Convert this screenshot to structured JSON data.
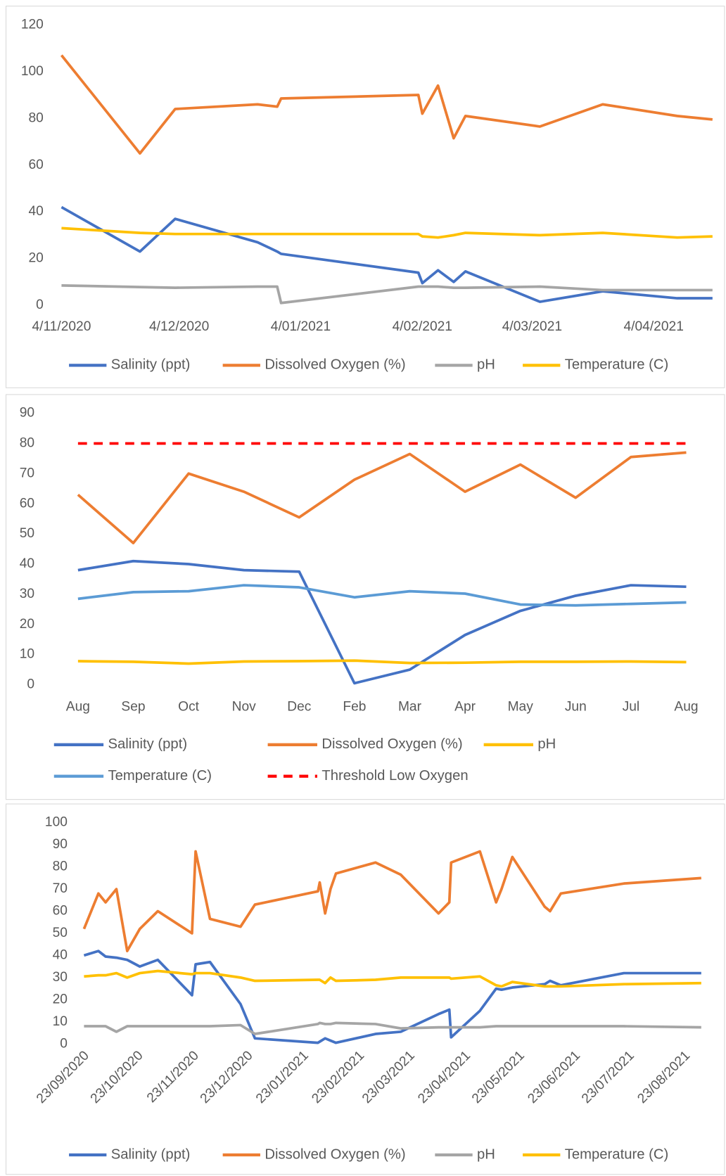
{
  "chart_data": [
    {
      "type": "line",
      "x": [
        "2020-11-04",
        "2020-11-24",
        "2020-12-03",
        "2020-12-24",
        "2020-12-29",
        "2020-12-30",
        "2021-02-03",
        "2021-02-04",
        "2021-02-08",
        "2021-02-12",
        "2021-02-15",
        "2021-03-06",
        "2021-03-22",
        "2021-04-10",
        "2021-04-19"
      ],
      "xlim": [
        "2020-11-04",
        "2021-04-19"
      ],
      "xticks": [
        {
          "value": "2020-11-04",
          "label": "4/11/2020"
        },
        {
          "value": "2020-12-04",
          "label": "4/12/2020"
        },
        {
          "value": "2021-01-04",
          "label": "4/01/2021"
        },
        {
          "value": "2021-02-04",
          "label": "4/02/2021"
        },
        {
          "value": "2021-03-04",
          "label": "4/03/2021"
        },
        {
          "value": "2021-04-04",
          "label": "4/04/2021"
        }
      ],
      "ylim": [
        0,
        120
      ],
      "yticks": [
        0,
        20,
        40,
        60,
        80,
        100,
        120
      ],
      "grid": false,
      "series": [
        {
          "name": "Salinity (ppt)",
          "color": "#4472c4",
          "values": [
            42,
            23,
            37,
            27,
            23,
            22,
            14,
            9.5,
            15,
            10,
            14.5,
            1.5,
            6,
            3,
            3
          ]
        },
        {
          "name": "Dissolved Oxygen (%)",
          "color": "#ed7d31",
          "values": [
            107,
            65,
            84,
            86,
            85,
            88.5,
            90,
            82,
            94,
            71.5,
            81,
            76.5,
            86,
            81,
            79.5
          ]
        },
        {
          "name": "pH",
          "color": "#a5a5a5",
          "values": [
            8.5,
            7.8,
            7.5,
            8,
            8,
            1,
            8,
            8,
            8,
            7.5,
            7.5,
            8,
            6.5,
            6.5,
            6.5
          ]
        },
        {
          "name": "Temperature (C)",
          "color": "#ffc000",
          "values": [
            33,
            31,
            30.5,
            30.5,
            30.5,
            30.5,
            30.5,
            29.5,
            29,
            30,
            31,
            30,
            31,
            29,
            29.5
          ]
        }
      ]
    },
    {
      "type": "line",
      "categories": [
        "Aug",
        "Sep",
        "Oct",
        "Nov",
        "Dec",
        "Feb",
        "Mar",
        "Apr",
        "May",
        "Jun",
        "Jul",
        "Aug"
      ],
      "ylim": [
        0,
        90
      ],
      "yticks": [
        0,
        10,
        20,
        30,
        40,
        50,
        60,
        70,
        80,
        90
      ],
      "grid": false,
      "series": [
        {
          "name": "Salinity (ppt)",
          "color": "#4472c4",
          "values": [
            38,
            41,
            40,
            38,
            37.5,
            0.5,
            5,
            16.5,
            24.5,
            29.5,
            33,
            32.5
          ]
        },
        {
          "name": "Dissolved Oxygen (%)",
          "color": "#ed7d31",
          "values": [
            63,
            47,
            70,
            64,
            55.5,
            68,
            76.5,
            64,
            73,
            62,
            75.5,
            77
          ]
        },
        {
          "name": "pH",
          "color": "#ffc000",
          "values": [
            7.8,
            7.6,
            7,
            7.7,
            7.8,
            8,
            7.2,
            7.3,
            7.6,
            7.6,
            7.7,
            7.5
          ]
        },
        {
          "name": "Temperature (C)",
          "color": "#5b9bd5",
          "values": [
            28.5,
            30.7,
            31,
            33,
            32.3,
            29,
            31,
            30.2,
            26.6,
            26.3,
            26.8,
            27.3
          ]
        },
        {
          "name": "Threshold Low Oxygen",
          "color": "#ff0000",
          "dashed": true,
          "values": [
            80,
            80,
            80,
            80,
            80,
            80,
            80,
            80,
            80,
            80,
            80,
            80
          ]
        }
      ]
    },
    {
      "type": "line",
      "x": [
        "2020-09-23",
        "2020-10-01",
        "2020-10-05",
        "2020-10-11",
        "2020-10-17",
        "2020-10-24",
        "2020-11-03",
        "2020-11-22",
        "2020-11-24",
        "2020-12-02",
        "2020-12-19",
        "2020-12-27",
        "2021-01-31",
        "2021-02-01",
        "2021-02-04",
        "2021-02-07",
        "2021-02-10",
        "2021-03-04",
        "2021-03-18",
        "2021-04-08",
        "2021-04-14",
        "2021-04-15",
        "2021-05-01",
        "2021-05-10",
        "2021-05-13",
        "2021-05-19",
        "2021-06-06",
        "2021-06-09",
        "2021-06-15",
        "2021-07-20",
        "2021-09-01"
      ],
      "xlim": [
        "2020-09-23",
        "2021-09-01"
      ],
      "xticks": [
        {
          "value": "2020-09-23",
          "label": "23/09/2020"
        },
        {
          "value": "2020-10-23",
          "label": "23/10/2020"
        },
        {
          "value": "2020-11-23",
          "label": "23/11/2020"
        },
        {
          "value": "2020-12-23",
          "label": "23/12/2020"
        },
        {
          "value": "2021-01-23",
          "label": "23/01/2021"
        },
        {
          "value": "2021-02-23",
          "label": "23/02/2021"
        },
        {
          "value": "2021-03-23",
          "label": "23/03/2021"
        },
        {
          "value": "2021-04-23",
          "label": "23/04/2021"
        },
        {
          "value": "2021-05-23",
          "label": "23/05/2021"
        },
        {
          "value": "2021-06-23",
          "label": "23/06/2021"
        },
        {
          "value": "2021-07-23",
          "label": "23/07/2021"
        },
        {
          "value": "2021-08-23",
          "label": "23/08/2021"
        }
      ],
      "ylim": [
        0,
        100
      ],
      "yticks": [
        0,
        10,
        20,
        30,
        40,
        50,
        60,
        70,
        80,
        90,
        100
      ],
      "grid": false,
      "series": [
        {
          "name": "Salinity (ppt)",
          "color": "#4472c4",
          "values": [
            40,
            42,
            39.5,
            39,
            38,
            35,
            38,
            22,
            36,
            37,
            18,
            2.5,
            0.5,
            1,
            2.5,
            1.5,
            0.5,
            4.5,
            5.5,
            13.5,
            15.5,
            3,
            15,
            25,
            24.5,
            25.5,
            27,
            28.5,
            26.5,
            32,
            32
          ]
        },
        {
          "name": "Dissolved Oxygen (%)",
          "color": "#ed7d31",
          "values": [
            52,
            68,
            64,
            70,
            42,
            52,
            60,
            50,
            87,
            56.5,
            53,
            63,
            69,
            73,
            59,
            70,
            77,
            82,
            76.5,
            59,
            64,
            82,
            87,
            64,
            70,
            84.5,
            62,
            60,
            68,
            72.5,
            75
          ]
        },
        {
          "name": "pH",
          "color": "#a5a5a5",
          "values": [
            8,
            8,
            8,
            5.5,
            8,
            8,
            8,
            8,
            8,
            8,
            8.5,
            4.5,
            9,
            9.5,
            9,
            9,
            9.5,
            9,
            7,
            7.5,
            7.5,
            7.5,
            7.5,
            8,
            8,
            8,
            8,
            8,
            8,
            8,
            7.5
          ]
        },
        {
          "name": "Temperature (C)",
          "color": "#ffc000",
          "values": [
            30.5,
            31,
            31,
            32,
            30,
            32,
            33,
            31.5,
            32,
            32,
            30,
            28.5,
            29,
            29,
            27.5,
            30,
            28.5,
            29,
            30,
            30,
            30,
            29.5,
            30.5,
            26.5,
            26,
            28,
            26,
            26,
            26,
            27,
            27.5
          ]
        }
      ]
    }
  ]
}
